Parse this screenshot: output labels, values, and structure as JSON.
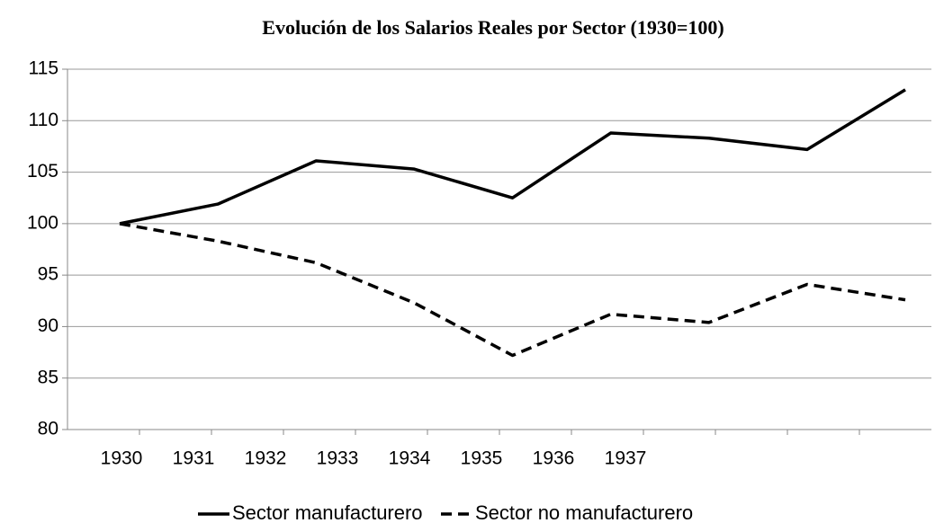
{
  "chart_data": {
    "type": "line",
    "title": "Evolución de los Salarios Reales por Sector (1930=100)",
    "categories": [
      "1930",
      "1931",
      "1932",
      "1933",
      "1934",
      "1935",
      "1936",
      "1937",
      null
    ],
    "series": [
      {
        "name": "Sector manufacturero",
        "color": "#000000",
        "dash": "solid",
        "values": [
          100,
          101.9,
          106.1,
          105.3,
          102.5,
          108.8,
          108.3,
          107.2,
          113.0
        ]
      },
      {
        "name": "Sector no manufacturero",
        "color": "#000000",
        "dash": "dashed",
        "values": [
          100,
          98.3,
          96.2,
          92.3,
          87.2,
          91.2,
          90.4,
          94.1,
          92.6
        ]
      }
    ],
    "ylim": [
      80,
      115
    ],
    "yticks": [
      80,
      85,
      90,
      95,
      100,
      105,
      110,
      115
    ],
    "grid": true,
    "legend": "bottom"
  }
}
